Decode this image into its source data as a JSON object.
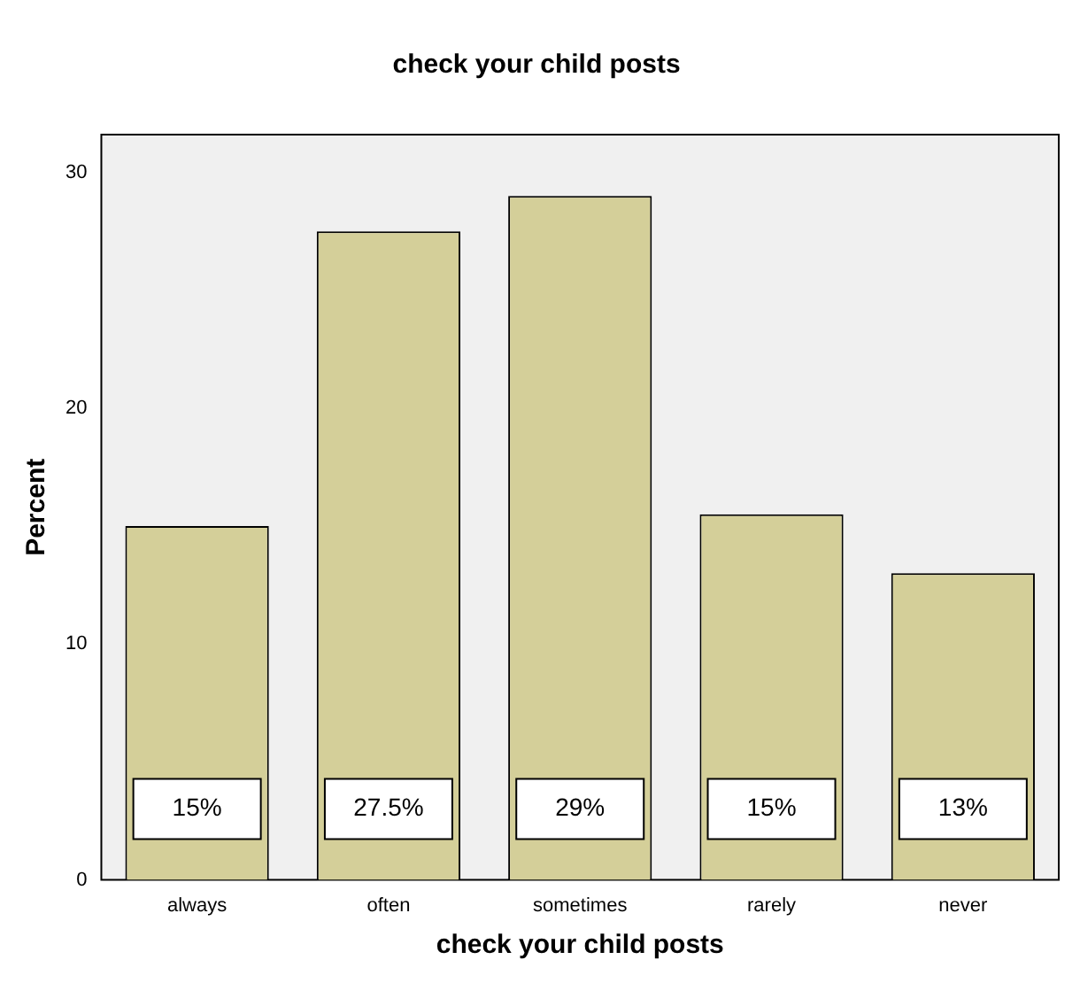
{
  "chart_data": {
    "type": "bar",
    "title": "check your child posts",
    "xlabel": "check your child posts",
    "ylabel": "Percent",
    "categories": [
      "always",
      "often",
      "sometimes",
      "rarely",
      "never"
    ],
    "values": [
      15,
      27.5,
      29,
      15.5,
      13
    ],
    "value_labels": [
      "15%",
      "27.5%",
      "29%",
      "15%",
      "13%"
    ],
    "color": "#d4cf99",
    "ylim": [
      0,
      31.6
    ],
    "yticks": [
      0,
      10,
      20,
      30
    ],
    "grid": false,
    "legend": false
  }
}
